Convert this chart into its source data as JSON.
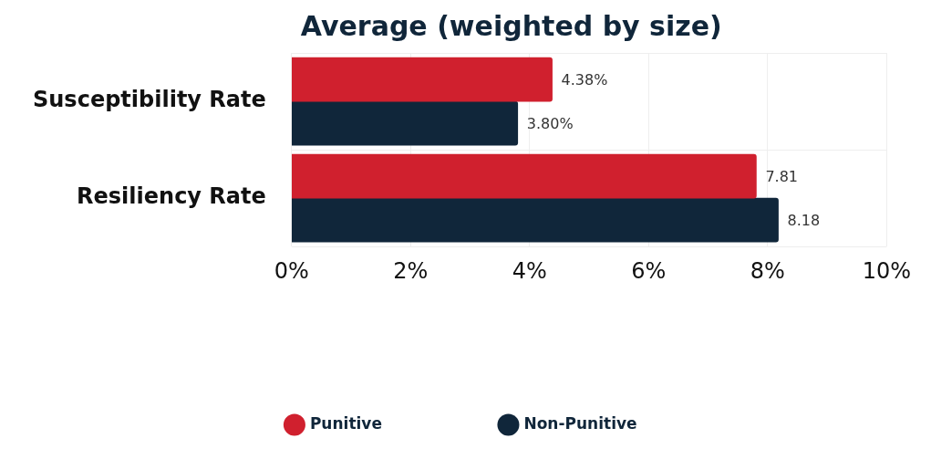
{
  "chart_data": {
    "type": "bar",
    "orientation": "horizontal",
    "title": "Average (weighted by size)",
    "categories": [
      "Susceptibility Rate",
      "Resiliency Rate"
    ],
    "series": [
      {
        "name": "Punitive",
        "color": "#d0202e",
        "values": [
          4.38,
          7.81
        ],
        "value_labels": [
          "4.38%",
          "7.81"
        ]
      },
      {
        "name": "Non-Punitive",
        "color": "#10263a",
        "values": [
          3.8,
          8.18
        ],
        "value_labels": [
          "3.80%",
          "8.18"
        ]
      }
    ],
    "xlim": [
      0,
      10
    ],
    "xticks": [
      {
        "value": 0,
        "label": "0%"
      },
      {
        "value": 2,
        "label": "2%"
      },
      {
        "value": 4,
        "label": "4%"
      },
      {
        "value": 6,
        "label": "6%"
      },
      {
        "value": 8,
        "label": "8%"
      },
      {
        "value": 10,
        "label": "10%"
      }
    ],
    "grid": true,
    "legend": "bottom"
  }
}
